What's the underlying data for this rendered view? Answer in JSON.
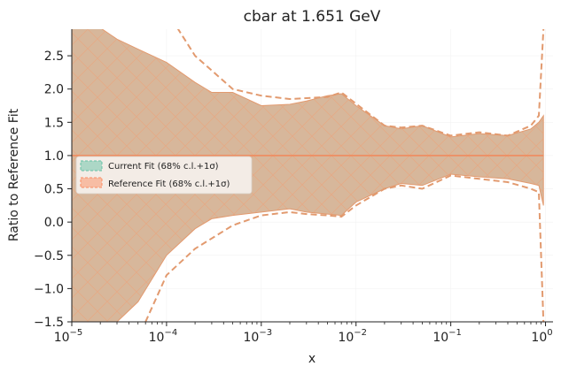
{
  "chart_data": {
    "type": "line",
    "title": "cbar at 1.651 GeV",
    "xlabel": "x",
    "ylabel": "Ratio to Reference Fit",
    "xscale": "log",
    "xlim": [
      1e-05,
      1.2
    ],
    "ylim": [
      -1.5,
      2.9
    ],
    "x_ticks": [
      {
        "value": 1e-05,
        "base": "10",
        "exp": "−5"
      },
      {
        "value": 0.0001,
        "base": "10",
        "exp": "−4"
      },
      {
        "value": 0.001,
        "base": "10",
        "exp": "−3"
      },
      {
        "value": 0.01,
        "base": "10",
        "exp": "−2"
      },
      {
        "value": 0.1,
        "base": "10",
        "exp": "−1"
      },
      {
        "value": 1,
        "base": "10",
        "exp": "0"
      }
    ],
    "y_ticks": [
      "−1.5",
      "−1.0",
      "−0.5",
      "0.0",
      "0.5",
      "1.0",
      "1.5",
      "2.0",
      "2.5"
    ],
    "y_tick_values": [
      -1.5,
      -1.0,
      -0.5,
      0.0,
      0.5,
      1.0,
      1.5,
      2.0,
      2.5
    ],
    "legend": {
      "placement": "center-left",
      "entries": [
        {
          "label": "Current Fit (68% c.l.+1σ)",
          "color": "#66c2a5"
        },
        {
          "label": "Reference Fit (68% c.l.+1σ)",
          "color": "#fc8d62"
        }
      ]
    },
    "colors": {
      "band_fill": "#d5b396",
      "band_edge": "#e29a6f",
      "reference": "#f08b5e",
      "current": "#66c2a5"
    },
    "series": [
      {
        "name": "Current Fit (68% c.l.+1σ)",
        "kind": "band",
        "x": [
          1e-05,
          2e-05,
          3e-05,
          5e-05,
          0.0001,
          0.0002,
          0.0003,
          0.0005,
          0.001,
          0.002,
          0.003,
          0.005,
          0.007,
          0.01,
          0.02,
          0.03,
          0.05,
          0.1,
          0.2,
          0.4,
          0.7,
          0.85,
          0.95
        ],
        "upper": [
          2.92,
          2.92,
          2.75,
          2.6,
          2.4,
          2.1,
          1.95,
          1.95,
          1.75,
          1.77,
          1.82,
          1.9,
          1.93,
          1.75,
          1.45,
          1.4,
          1.45,
          1.28,
          1.33,
          1.3,
          1.4,
          1.5,
          1.6
        ],
        "lower": [
          -1.5,
          -1.5,
          -1.5,
          -1.2,
          -0.5,
          -0.1,
          0.05,
          0.1,
          0.15,
          0.2,
          0.15,
          0.12,
          0.1,
          0.3,
          0.5,
          0.58,
          0.55,
          0.72,
          0.68,
          0.65,
          0.58,
          0.55,
          0.25
        ]
      },
      {
        "name": "Reference Fit (68% c.l.+1σ)",
        "kind": "band_edges_dashed",
        "x_upper": [
          0.00013,
          0.0002,
          0.0005,
          0.001,
          0.002,
          0.005,
          0.007,
          0.01,
          0.02,
          0.03,
          0.05,
          0.1,
          0.2,
          0.4,
          0.7,
          0.85,
          0.95
        ],
        "upper": [
          2.92,
          2.5,
          2.0,
          1.9,
          1.85,
          1.88,
          1.95,
          1.78,
          1.45,
          1.42,
          1.45,
          1.3,
          1.35,
          1.3,
          1.45,
          1.6,
          2.9
        ],
        "x_lower": [
          6e-05,
          0.0001,
          0.0002,
          0.0005,
          0.001,
          0.002,
          0.003,
          0.005,
          0.007,
          0.01,
          0.02,
          0.03,
          0.05,
          0.1,
          0.2,
          0.4,
          0.7,
          0.85,
          0.95
        ],
        "lower": [
          -1.5,
          -0.8,
          -0.4,
          -0.05,
          0.1,
          0.15,
          0.12,
          0.1,
          0.08,
          0.25,
          0.5,
          0.55,
          0.5,
          0.7,
          0.65,
          0.6,
          0.5,
          0.45,
          -1.5
        ]
      },
      {
        "name": "Reference central",
        "kind": "line",
        "x": [
          1e-05,
          0.95
        ],
        "y": [
          1.0,
          1.0
        ]
      }
    ]
  }
}
